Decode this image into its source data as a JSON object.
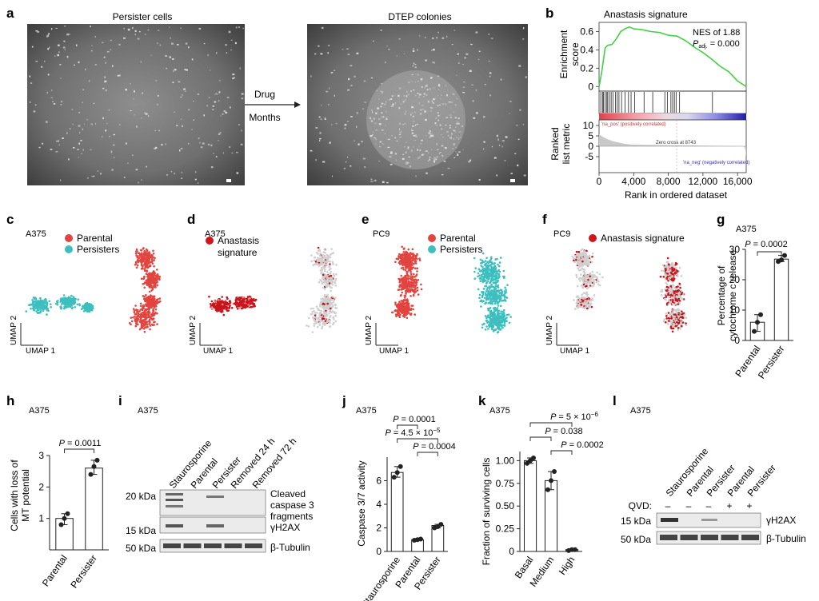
{
  "figure": {
    "panel_labels": [
      "a",
      "b",
      "c",
      "d",
      "e",
      "f",
      "g",
      "h",
      "i",
      "j",
      "k",
      "l"
    ],
    "a": {
      "left_title": "Persister cells",
      "right_title": "DTEP colonies",
      "arrow_top": "Drug",
      "arrow_bottom": "Months"
    },
    "b": {
      "title": "Anastasis signature",
      "ylabel_top_1": "Enrichment",
      "ylabel_top_2": "score",
      "nes": "NES of 1.88",
      "padj_prefix": "P",
      "padj_sub": "adj.",
      "padj_suffix": " = 0.000",
      "ylabel_bottom_1": "Ranked",
      "ylabel_bottom_2": "list metric",
      "pos_label": "'na_pos' (positively correlated)",
      "zero_cross": "Zero cross at 8743",
      "neg_label": "'na_neg' (negatively correlated)",
      "xlabel": "Rank in ordered dataset",
      "es_ticks": [
        "0.6",
        "0.4",
        "0.2",
        "0"
      ],
      "metric_ticks": [
        "10",
        "5",
        "0",
        "-5"
      ],
      "x_ticks": [
        "0",
        "4,000",
        "8,000",
        "12,000",
        "16,000"
      ]
    },
    "c": {
      "cell": "A375",
      "legend": [
        "Parental",
        "Persisters"
      ],
      "ax_x": "UMAP 1",
      "ax_y": "UMAP 2"
    },
    "d": {
      "cell": "A375",
      "legend_1": "Anastasis",
      "legend_2": "signature",
      "ax_x": "UMAP 1",
      "ax_y": "UMAP 2"
    },
    "e": {
      "cell": "PC9",
      "legend": [
        "Parental",
        "Persisters"
      ],
      "ax_x": "UMAP 1",
      "ax_y": "UMAP 2"
    },
    "f": {
      "cell": "PC9",
      "legend": "Anastasis signature",
      "ax_x": "UMAP 1",
      "ax_y": "UMAP 2"
    },
    "g": {
      "cell": "A375",
      "p": "= 0.0002",
      "ylabel_1": "Percentage of",
      "ylabel_2": "cytochrome c release"
    },
    "h": {
      "cell": "A375",
      "p": "= 0.0011",
      "ylabel_1": "Cells with loss of",
      "ylabel_2": "MT potential"
    },
    "i": {
      "cell": "A375",
      "lanes": [
        "Staurosporine",
        "Parental",
        "Persister",
        "Removed 24 h",
        "Removed 72 h"
      ],
      "kda_top": "20 kDa",
      "kda_mid": "15 kDa",
      "kda_bot": "50 kDa",
      "band_1": "Cleaved",
      "band_2": "caspase 3",
      "band_3": "fragments",
      "band_h2ax": "γH2AX",
      "band_tub": "β-Tubulin"
    },
    "j": {
      "cell": "A375",
      "p1": "= 0.0001",
      "p2_base": "= 4.5 × 10",
      "p2_exp": "−5",
      "p3": "= 0.0004",
      "ylabel": "Caspase 3/7 activity"
    },
    "k": {
      "cell": "A375",
      "p1_base": "= 5 × 10",
      "p1_exp": "−6",
      "p2": "= 0.038",
      "p3": "= 0.0002",
      "ylabel": "Fraction of surviving cells"
    },
    "l": {
      "cell": "A375",
      "lanes": [
        "Staurosporine",
        "Parental",
        "Persister",
        "Parental",
        "Persister"
      ],
      "qvd_label": "QVD:",
      "qvd": [
        "–",
        "–",
        "–",
        "+",
        "+"
      ],
      "kda_top": "15 kDa",
      "kda_bot": "50 kDa",
      "band_h2ax": "γH2AX",
      "band_tub": "β-Tubulin"
    },
    "p_letter": "P"
  },
  "chart_data": [
    {
      "panel": "b",
      "type": "line",
      "title": "Anastasis signature",
      "xlabel": "Rank in ordered dataset",
      "ylabel": "Enrichment score",
      "xlim": [
        0,
        17000
      ],
      "ylim": [
        -0.05,
        0.7
      ],
      "x": [
        0,
        300,
        700,
        1000,
        1500,
        2000,
        2500,
        3000,
        3500,
        4000,
        5000,
        6000,
        7000,
        8000,
        9000,
        10000,
        11000,
        12000,
        13000,
        14000,
        15000,
        16000,
        17000
      ],
      "y": [
        0.0,
        0.15,
        0.42,
        0.45,
        0.46,
        0.52,
        0.6,
        0.63,
        0.65,
        0.63,
        0.62,
        0.6,
        0.59,
        0.56,
        0.55,
        0.5,
        0.43,
        0.37,
        0.3,
        0.22,
        0.16,
        0.06,
        0.0
      ]
    },
    {
      "panel": "g",
      "type": "bar",
      "categories": [
        "Parental",
        "Persister"
      ],
      "ylabel": "Percentage of cytochrome c release",
      "ylim": [
        0,
        30
      ],
      "y_ticks": [
        0,
        10,
        20,
        30
      ],
      "values": [
        6,
        26.8
      ],
      "points": [
        [
          3,
          6,
          8.5
        ],
        [
          26,
          26.5,
          28
        ]
      ]
    },
    {
      "panel": "h",
      "type": "bar",
      "categories": [
        "Parental",
        "Persister"
      ],
      "ylabel": "Cells with loss of MT potential",
      "ylim": [
        0,
        3
      ],
      "y_ticks": [
        1,
        2,
        3
      ],
      "values": [
        1.0,
        2.6
      ],
      "points": [
        [
          0.8,
          1.0,
          1.15
        ],
        [
          2.4,
          2.65,
          2.85
        ]
      ]
    },
    {
      "panel": "j",
      "type": "bar",
      "categories": [
        "Staurosporine",
        "Parental",
        "Persister"
      ],
      "ylabel": "Caspase 3/7 activity",
      "ylim": [
        0,
        8
      ],
      "y_ticks": [
        0,
        2,
        4,
        6
      ],
      "values": [
        6.7,
        1.0,
        2.2
      ],
      "points": [
        [
          6.3,
          6.7,
          7.2
        ],
        [
          0.95,
          1.0,
          1.05
        ],
        [
          2.0,
          2.1,
          2.3
        ]
      ]
    },
    {
      "panel": "k",
      "type": "bar",
      "categories": [
        "Basal",
        "Medium",
        "High"
      ],
      "ylabel": "Fraction of surviving cells",
      "ylim": [
        0,
        1.1
      ],
      "y_ticks": [
        0,
        0.25,
        0.5,
        0.75,
        1.0
      ],
      "y_tick_labels": [
        "0",
        "0.25",
        "0.50",
        "0.75",
        "1.00"
      ],
      "values": [
        1.0,
        0.78,
        0.02
      ],
      "points": [
        [
          0.97,
          1.0,
          1.03
        ],
        [
          0.68,
          0.78,
          0.88
        ],
        [
          0.01,
          0.02,
          0.02
        ]
      ]
    }
  ]
}
